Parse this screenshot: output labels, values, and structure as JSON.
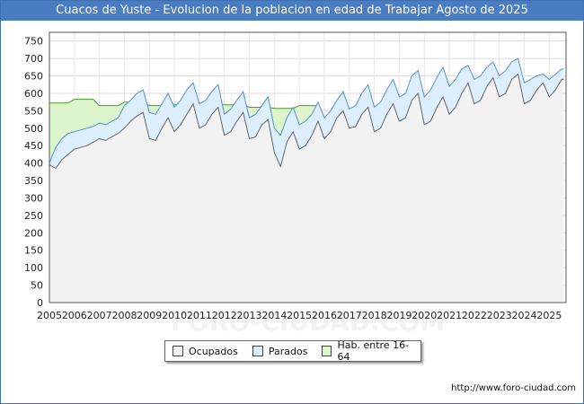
{
  "chart_data": {
    "type": "area",
    "title": "Cuacos de Yuste - Evolucion de la poblacion en edad de Trabajar Agosto de 2025",
    "xlabel": "",
    "ylabel": "",
    "xlim": [
      2005,
      2025.67
    ],
    "ylim": [
      0,
      775
    ],
    "yticks": [
      0,
      50,
      100,
      150,
      200,
      250,
      300,
      350,
      400,
      450,
      500,
      550,
      600,
      650,
      700,
      750
    ],
    "xticks": [
      "2005",
      "2006",
      "2007",
      "2008",
      "2009",
      "2010",
      "2011",
      "2012",
      "2013",
      "2014",
      "2015",
      "2016",
      "2017",
      "2018",
      "2019",
      "2020",
      "2021",
      "2022",
      "2023",
      "2024",
      "2025"
    ],
    "grid": true,
    "legend_position": "bottom",
    "series": [
      {
        "name": "Ocupados",
        "fill": "#f2f2f2",
        "stroke": "#666666",
        "x": [
          2005.0,
          2005.25,
          2005.5,
          2005.75,
          2006.0,
          2006.25,
          2006.5,
          2006.75,
          2007.0,
          2007.25,
          2007.5,
          2007.75,
          2008.0,
          2008.25,
          2008.5,
          2008.75,
          2009.0,
          2009.25,
          2009.5,
          2009.75,
          2010.0,
          2010.25,
          2010.5,
          2010.75,
          2011.0,
          2011.25,
          2011.5,
          2011.75,
          2012.0,
          2012.25,
          2012.5,
          2012.75,
          2013.0,
          2013.25,
          2013.5,
          2013.75,
          2014.0,
          2014.25,
          2014.5,
          2014.75,
          2015.0,
          2015.25,
          2015.5,
          2015.75,
          2016.0,
          2016.25,
          2016.5,
          2016.75,
          2017.0,
          2017.25,
          2017.5,
          2017.75,
          2018.0,
          2018.25,
          2018.5,
          2018.75,
          2019.0,
          2019.25,
          2019.5,
          2019.75,
          2020.0,
          2020.25,
          2020.5,
          2020.75,
          2021.0,
          2021.25,
          2021.5,
          2021.75,
          2022.0,
          2022.25,
          2022.5,
          2022.75,
          2023.0,
          2023.25,
          2023.5,
          2023.75,
          2024.0,
          2024.25,
          2024.5,
          2024.75,
          2025.0,
          2025.25,
          2025.5,
          2025.58
        ],
        "values": [
          395,
          385,
          410,
          425,
          440,
          445,
          450,
          460,
          470,
          465,
          475,
          485,
          500,
          520,
          535,
          545,
          470,
          465,
          500,
          530,
          490,
          510,
          540,
          570,
          500,
          510,
          540,
          560,
          480,
          490,
          520,
          545,
          470,
          475,
          510,
          525,
          430,
          390,
          460,
          490,
          440,
          450,
          480,
          520,
          470,
          490,
          530,
          550,
          500,
          505,
          540,
          560,
          490,
          500,
          540,
          570,
          520,
          530,
          580,
          600,
          510,
          520,
          560,
          590,
          540,
          560,
          600,
          630,
          570,
          580,
          620,
          645,
          590,
          600,
          640,
          655,
          570,
          580,
          610,
          630,
          590,
          610,
          640,
          640
        ]
      },
      {
        "name": "Parados",
        "fill": "#ddeeff",
        "stroke": "#5a8fd6",
        "x": [
          2005.0,
          2005.25,
          2005.5,
          2005.75,
          2006.0,
          2006.25,
          2006.5,
          2006.75,
          2007.0,
          2007.25,
          2007.5,
          2007.75,
          2008.0,
          2008.25,
          2008.5,
          2008.75,
          2009.0,
          2009.25,
          2009.5,
          2009.75,
          2010.0,
          2010.25,
          2010.5,
          2010.75,
          2011.0,
          2011.25,
          2011.5,
          2011.75,
          2012.0,
          2012.25,
          2012.5,
          2012.75,
          2013.0,
          2013.25,
          2013.5,
          2013.75,
          2014.0,
          2014.25,
          2014.5,
          2014.75,
          2015.0,
          2015.25,
          2015.5,
          2015.75,
          2016.0,
          2016.25,
          2016.5,
          2016.75,
          2017.0,
          2017.25,
          2017.5,
          2017.75,
          2018.0,
          2018.25,
          2018.5,
          2018.75,
          2019.0,
          2019.25,
          2019.5,
          2019.75,
          2020.0,
          2020.25,
          2020.5,
          2020.75,
          2021.0,
          2021.25,
          2021.5,
          2021.75,
          2022.0,
          2022.25,
          2022.5,
          2022.75,
          2023.0,
          2023.25,
          2023.5,
          2023.75,
          2024.0,
          2024.25,
          2024.5,
          2024.75,
          2025.0,
          2025.25,
          2025.5,
          2025.58
        ],
        "values": [
          400,
          445,
          470,
          485,
          490,
          495,
          500,
          505,
          515,
          510,
          520,
          530,
          565,
          580,
          600,
          610,
          545,
          540,
          570,
          600,
          560,
          580,
          610,
          630,
          570,
          580,
          605,
          625,
          540,
          555,
          580,
          605,
          530,
          540,
          565,
          590,
          500,
          480,
          530,
          560,
          510,
          520,
          540,
          575,
          530,
          550,
          580,
          605,
          555,
          565,
          600,
          625,
          560,
          575,
          610,
          640,
          590,
          600,
          650,
          665,
          590,
          610,
          645,
          675,
          620,
          640,
          670,
          680,
          640,
          650,
          675,
          690,
          650,
          665,
          690,
          700,
          630,
          640,
          650,
          655,
          640,
          655,
          670,
          670
        ]
      },
      {
        "name": "Hab. entre 16-64",
        "fill": "#ddf5cc",
        "stroke": "#4a9a2a",
        "x": [
          2005.0,
          2005.25,
          2005.5,
          2005.75,
          2006.0,
          2006.25,
          2006.5,
          2006.75,
          2007.0,
          2007.25,
          2007.5,
          2007.75,
          2008.0,
          2008.25,
          2008.5,
          2008.75,
          2009.0,
          2009.25,
          2009.5,
          2009.75,
          2010.0,
          2010.25,
          2010.5,
          2010.75,
          2011.0,
          2011.25,
          2011.5,
          2011.75,
          2012.0,
          2012.25,
          2012.5,
          2012.75,
          2013.0,
          2013.25,
          2013.5,
          2013.75,
          2014.0,
          2014.25,
          2014.5,
          2014.75,
          2015.0,
          2015.25,
          2015.5,
          2015.75
        ],
        "values": [
          572,
          572,
          572,
          572,
          583,
          583,
          583,
          583,
          565,
          565,
          565,
          565,
          575,
          575,
          575,
          575,
          565,
          565,
          565,
          565,
          568,
          568,
          568,
          568,
          570,
          570,
          570,
          570,
          567,
          567,
          567,
          567,
          560,
          560,
          560,
          560,
          557,
          557,
          557,
          557,
          565,
          565,
          565,
          565
        ]
      }
    ]
  },
  "legend": {
    "items": [
      {
        "label": "Ocupados",
        "color": "#f2f2f2"
      },
      {
        "label": "Parados",
        "color": "#ddeeff"
      },
      {
        "label": "Hab. entre 16-64",
        "color": "#ddf5cc"
      }
    ]
  },
  "watermark": "FORO-CIUDAD.COM",
  "source_url": "http://www.foro-ciudad.com"
}
